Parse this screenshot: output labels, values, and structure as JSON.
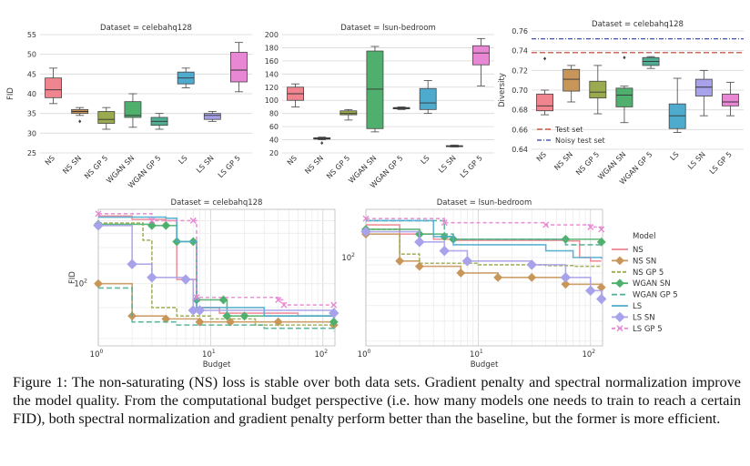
{
  "caption": "Figure 1: The non-saturating (NS) loss is stable over both data sets. Gradient penalty and spectral normalization improve the model quality. From the computational budget perspective (i.e. how many models one needs to train to reach a certain FID), both spectral normalization and gradient penalty perform better than the baseline, but the former is more efficient.",
  "models": [
    "NS",
    "NS SN",
    "NS GP 5",
    "WGAN SN",
    "WGAN GP 5",
    "LS",
    "LS SN",
    "LS GP 5"
  ],
  "colors": [
    "#f08590",
    "#c9965a",
    "#9aab4f",
    "#4fb06d",
    "#4fae94",
    "#4fabce",
    "#a8a2ea",
    "#e888d4"
  ],
  "legend_title": "Model",
  "chart_data": [
    {
      "type": "box",
      "title": "Dataset = celebahq128",
      "ylabel": "FID",
      "ylim": [
        25,
        55
      ],
      "yticks": [
        "25",
        "30",
        "35",
        "40",
        "45",
        "50",
        "55"
      ],
      "categories": [
        "NS",
        "NS SN",
        "NS GP 5",
        "WGAN SN",
        "WGAN GP 5",
        "LS",
        "LS SN",
        "LS GP 5"
      ],
      "boxes": [
        {
          "min": 37.5,
          "q1": 39,
          "median": 41,
          "q3": 44,
          "max": 46.5,
          "outliers": []
        },
        {
          "min": 34.5,
          "q1": 35,
          "median": 35.5,
          "q3": 36,
          "max": 36.5,
          "outliers": [
            33
          ]
        },
        {
          "min": 31,
          "q1": 32.5,
          "median": 33.5,
          "q3": 35.5,
          "max": 36.5,
          "outliers": []
        },
        {
          "min": 31.5,
          "q1": 34,
          "median": 34.5,
          "q3": 38,
          "max": 40,
          "outliers": []
        },
        {
          "min": 31,
          "q1": 32,
          "median": 33,
          "q3": 34,
          "max": 35,
          "outliers": []
        },
        {
          "min": 41.5,
          "q1": 42.5,
          "median": 44,
          "q3": 45.5,
          "max": 46.5,
          "outliers": []
        },
        {
          "min": 33,
          "q1": 33.5,
          "median": 34.5,
          "q3": 35,
          "max": 35.5,
          "outliers": []
        },
        {
          "min": 40.5,
          "q1": 43,
          "median": 46,
          "q3": 50.5,
          "max": 53,
          "outliers": []
        }
      ]
    },
    {
      "type": "box",
      "title": "Dataset = lsun-bedroom",
      "ylabel": "",
      "ylim": [
        20,
        200
      ],
      "yticks": [
        "20",
        "40",
        "60",
        "80",
        "100",
        "120",
        "140",
        "160",
        "180",
        "200"
      ],
      "categories": [
        "NS",
        "NS SN",
        "NS GP 5",
        "WGAN SN",
        "WGAN GP 5",
        "LS",
        "LS SN",
        "LS GP 5"
      ],
      "boxes": [
        {
          "min": 90,
          "q1": 100,
          "median": 110,
          "q3": 120,
          "max": 125,
          "outliers": []
        },
        {
          "min": 40,
          "q1": 41,
          "median": 42,
          "q3": 43,
          "max": 44,
          "outliers": [
            35
          ]
        },
        {
          "min": 70,
          "q1": 78,
          "median": 80,
          "q3": 84,
          "max": 86,
          "outliers": []
        },
        {
          "min": 52,
          "q1": 57,
          "median": 117,
          "q3": 175,
          "max": 182,
          "outliers": []
        },
        {
          "min": 86,
          "q1": 87,
          "median": 88,
          "q3": 89,
          "max": 90,
          "outliers": []
        },
        {
          "min": 80,
          "q1": 86,
          "median": 96,
          "q3": 118,
          "max": 130,
          "outliers": []
        },
        {
          "min": 29,
          "q1": 29.5,
          "median": 30,
          "q3": 31,
          "max": 32,
          "outliers": []
        },
        {
          "min": 122,
          "q1": 154,
          "median": 172,
          "q3": 183,
          "max": 194,
          "outliers": []
        }
      ]
    },
    {
      "type": "box",
      "title": "Dataset = celebahq128",
      "ylabel": "Diversity",
      "ylim": [
        0.64,
        0.76
      ],
      "yticks": [
        "0.64",
        "0.66",
        "0.68",
        "0.70",
        "0.72",
        "0.74",
        "0.76"
      ],
      "categories": [
        "NS",
        "NS SN",
        "NS GP 5",
        "WGAN SN",
        "WGAN GP 5",
        "LS",
        "LS SN",
        "LS GP 5"
      ],
      "boxes": [
        {
          "min": 0.675,
          "q1": 0.679,
          "median": 0.684,
          "q3": 0.696,
          "max": 0.7,
          "outliers": [
            0.732
          ]
        },
        {
          "min": 0.688,
          "q1": 0.699,
          "median": 0.711,
          "q3": 0.721,
          "max": 0.725,
          "outliers": []
        },
        {
          "min": 0.676,
          "q1": 0.692,
          "median": 0.698,
          "q3": 0.709,
          "max": 0.725,
          "outliers": []
        },
        {
          "min": 0.667,
          "q1": 0.683,
          "median": 0.695,
          "q3": 0.702,
          "max": 0.704,
          "outliers": [
            0.733
          ]
        },
        {
          "min": 0.722,
          "q1": 0.725,
          "median": 0.729,
          "q3": 0.733,
          "max": 0.734,
          "outliers": []
        },
        {
          "min": 0.657,
          "q1": 0.661,
          "median": 0.674,
          "q3": 0.686,
          "max": 0.712,
          "outliers": []
        },
        {
          "min": 0.674,
          "q1": 0.694,
          "median": 0.703,
          "q3": 0.711,
          "max": 0.72,
          "outliers": []
        },
        {
          "min": 0.674,
          "q1": 0.684,
          "median": 0.688,
          "q3": 0.696,
          "max": 0.708,
          "outliers": []
        }
      ],
      "reference_lines": [
        {
          "label": "Test set",
          "value": 0.738,
          "color": "#c0392b",
          "dash": "6,3"
        },
        {
          "label": "Noisy test set",
          "value": 0.752,
          "color": "#2c3e9e",
          "dash": "5,2,1,2"
        }
      ]
    },
    {
      "type": "line",
      "title": "Dataset = celebahq128",
      "xlabel": "Budget",
      "ylabel": "FID",
      "xscale": "log",
      "yscale": "log",
      "xlim": [
        1,
        128
      ],
      "ylim": [
        28,
        100
      ],
      "xticks": [
        {
          "v": 1,
          "t": "10",
          "e": "0"
        },
        {
          "v": 10,
          "t": "10",
          "e": "1"
        },
        {
          "v": 100,
          "t": "10",
          "e": "2"
        }
      ],
      "yticks": [
        {
          "v": 50,
          "t": "10",
          "e": "2"
        }
      ],
      "series": [
        {
          "name": "NS",
          "points": [
            [
              1,
              94
            ],
            [
              2,
              91
            ],
            [
              4,
              90
            ],
            [
              5,
              52
            ],
            [
              7,
              52
            ],
            [
              7.5,
              40
            ],
            [
              12,
              38
            ],
            [
              60,
              37
            ],
            [
              125,
              37
            ]
          ]
        },
        {
          "name": "NS SN",
          "points": [
            [
              1,
              50
            ],
            [
              2,
              37
            ],
            [
              4,
              36
            ],
            [
              8,
              35
            ],
            [
              15,
              35
            ],
            [
              40,
              35
            ],
            [
              125,
              34
            ]
          ]
        },
        {
          "name": "NS GP 5",
          "points": [
            [
              1,
              88
            ],
            [
              2.5,
              75
            ],
            [
              3,
              40
            ],
            [
              5,
              37
            ],
            [
              10,
              36
            ],
            [
              25,
              34
            ],
            [
              125,
              33
            ]
          ]
        },
        {
          "name": "WGAN SN",
          "points": [
            [
              1,
              87
            ],
            [
              3,
              86
            ],
            [
              4,
              86
            ],
            [
              5,
              74
            ],
            [
              7,
              74
            ],
            [
              7.5,
              43
            ],
            [
              13,
              43
            ],
            [
              14,
              37
            ],
            [
              20,
              37
            ],
            [
              125,
              35
            ]
          ]
        },
        {
          "name": "WGAN GP 5",
          "points": [
            [
              1,
              48
            ],
            [
              2,
              35
            ],
            [
              5,
              34
            ],
            [
              30,
              33
            ],
            [
              125,
              32
            ]
          ]
        },
        {
          "name": "LS",
          "points": [
            [
              1,
              93
            ],
            [
              4,
              92
            ],
            [
              5,
              74
            ],
            [
              7,
              74
            ],
            [
              7.5,
              40
            ],
            [
              30,
              37
            ],
            [
              40,
              37
            ],
            [
              125,
              37
            ]
          ]
        },
        {
          "name": "LS SN",
          "points": [
            [
              1,
              86
            ],
            [
              2,
              60
            ],
            [
              3,
              53
            ],
            [
              6,
              52
            ],
            [
              7,
              39
            ],
            [
              8,
              39
            ],
            [
              125,
              38
            ]
          ]
        },
        {
          "name": "LS GP 5",
          "points": [
            [
              1,
              96
            ],
            [
              3,
              90
            ],
            [
              7,
              90
            ],
            [
              7.5,
              44
            ],
            [
              40,
              43
            ],
            [
              45,
              41
            ],
            [
              125,
              41
            ]
          ]
        }
      ]
    },
    {
      "type": "line",
      "title": "Dataset = lsun-bedroom",
      "xlabel": "Budget",
      "ylabel": "",
      "xscale": "log",
      "yscale": "log",
      "xlim": [
        1,
        128
      ],
      "ylim": [
        28,
        200
      ],
      "xticks": [
        {
          "v": 1,
          "t": "10",
          "e": "0"
        },
        {
          "v": 10,
          "t": "10",
          "e": "1"
        },
        {
          "v": 100,
          "t": "10",
          "e": "2"
        }
      ],
      "yticks": [
        {
          "v": 100,
          "t": "10",
          "e": "2"
        }
      ],
      "series": [
        {
          "name": "NS",
          "points": [
            [
              1,
              160
            ],
            [
              2,
              140
            ],
            [
              4,
              130
            ],
            [
              6,
              128
            ],
            [
              60,
              127
            ],
            [
              80,
              100
            ],
            [
              100,
              95
            ],
            [
              125,
              95
            ]
          ]
        },
        {
          "name": "NS SN",
          "points": [
            [
              1,
              140
            ],
            [
              2,
              95
            ],
            [
              3,
              88
            ],
            [
              7,
              80
            ],
            [
              15,
              75
            ],
            [
              30,
              75
            ],
            [
              60,
              68
            ],
            [
              125,
              65
            ]
          ]
        },
        {
          "name": "NS GP 5",
          "points": [
            [
              1,
              150
            ],
            [
              2,
              105
            ],
            [
              3,
              92
            ],
            [
              10,
              90
            ],
            [
              40,
              89
            ],
            [
              70,
              88
            ],
            [
              125,
              88
            ]
          ]
        },
        {
          "name": "WGAN SN",
          "points": [
            [
              1,
              150
            ],
            [
              3,
              140
            ],
            [
              5,
              135
            ],
            [
              6,
              130
            ],
            [
              60,
              130
            ],
            [
              125,
              125
            ]
          ]
        },
        {
          "name": "WGAN GP 5",
          "points": [
            [
              1,
              170
            ],
            [
              5,
              140
            ],
            [
              6,
              130
            ],
            [
              60,
              120
            ],
            [
              125,
              118
            ]
          ]
        },
        {
          "name": "LS",
          "points": [
            [
              1,
              170
            ],
            [
              4,
              135
            ],
            [
              6,
              120
            ],
            [
              40,
              110
            ],
            [
              70,
              100
            ],
            [
              125,
              98
            ]
          ]
        },
        {
          "name": "LS SN",
          "points": [
            [
              1,
              145
            ],
            [
              3,
              125
            ],
            [
              5,
              110
            ],
            [
              8,
              95
            ],
            [
              30,
              90
            ],
            [
              60,
              75
            ],
            [
              100,
              62
            ],
            [
              125,
              55
            ]
          ]
        },
        {
          "name": "LS GP 5",
          "points": [
            [
              1,
              175
            ],
            [
              5,
              165
            ],
            [
              40,
              160
            ],
            [
              100,
              155
            ],
            [
              125,
              150
            ]
          ]
        }
      ]
    }
  ]
}
